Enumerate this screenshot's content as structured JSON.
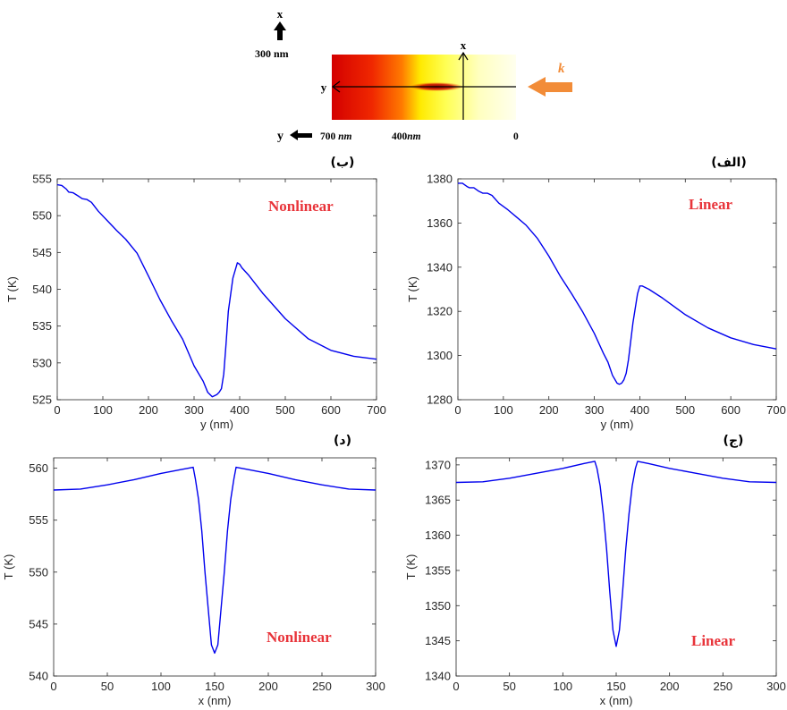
{
  "schematic": {
    "axis_x": "x",
    "axis_y": "y",
    "scale": "300 nm",
    "k": "k",
    "pos_700": "700",
    "pos_400": "400",
    "unit": "nm",
    "pos_0": "0",
    "colors": {
      "dark": "#d40000",
      "mid": "#ff5a00",
      "yellow": "#ffff00",
      "pale": "#ffffee",
      "arrow": "#f28c38"
    }
  },
  "chart_data": [
    {
      "type": "line",
      "panel_label": "(ب)",
      "annotation": "Nonlinear",
      "xlabel": "y (nm)",
      "ylabel": "T (K)",
      "xlim": [
        0,
        700
      ],
      "ylim": [
        525,
        555
      ],
      "xticks": [
        0,
        100,
        200,
        300,
        400,
        500,
        600,
        700
      ],
      "yticks": [
        525,
        530,
        535,
        540,
        545,
        550,
        555
      ],
      "series": [
        {
          "color": "#0000ee",
          "x": [
            0,
            10,
            20,
            25,
            35,
            45,
            55,
            65,
            75,
            90,
            110,
            130,
            150,
            175,
            200,
            225,
            250,
            275,
            300,
            320,
            330,
            340,
            350,
            355,
            360,
            365,
            370,
            375,
            385,
            395,
            400,
            405,
            420,
            450,
            500,
            550,
            600,
            650,
            700
          ],
          "y": [
            554.2,
            554.1,
            553.6,
            553.2,
            553.1,
            552.7,
            552.3,
            552.2,
            551.8,
            550.6,
            549.3,
            548.0,
            546.8,
            544.9,
            541.8,
            538.6,
            535.8,
            533.2,
            529.6,
            527.5,
            526.0,
            525.4,
            525.7,
            526.0,
            526.5,
            528.5,
            532.5,
            537.0,
            541.5,
            543.6,
            543.4,
            542.9,
            541.9,
            539.5,
            536.0,
            533.3,
            531.7,
            530.9,
            530.5
          ]
        }
      ]
    },
    {
      "type": "line",
      "panel_label": "(الف)",
      "annotation": "Linear",
      "xlabel": "y (nm)",
      "ylabel": "T (K)",
      "xlim": [
        0,
        700
      ],
      "ylim": [
        1280,
        1380
      ],
      "xticks": [
        0,
        100,
        200,
        300,
        400,
        500,
        600,
        700
      ],
      "yticks": [
        1280,
        1300,
        1320,
        1340,
        1360,
        1380
      ],
      "series": [
        {
          "color": "#0000ee",
          "x": [
            0,
            10,
            20,
            25,
            35,
            45,
            55,
            65,
            75,
            90,
            110,
            130,
            150,
            175,
            200,
            225,
            250,
            275,
            300,
            320,
            330,
            340,
            350,
            355,
            360,
            365,
            370,
            375,
            385,
            395,
            400,
            405,
            420,
            450,
            500,
            550,
            600,
            650,
            700
          ],
          "y": [
            1378,
            1378,
            1376.5,
            1376,
            1376,
            1374.5,
            1373.5,
            1373.5,
            1372.5,
            1369,
            1366,
            1362.5,
            1359,
            1353,
            1345,
            1336,
            1328,
            1319.5,
            1310,
            1301,
            1297,
            1291,
            1287.5,
            1287,
            1287.5,
            1289,
            1292,
            1298,
            1315,
            1328,
            1331.5,
            1331.5,
            1330,
            1326,
            1318.5,
            1312.5,
            1308,
            1305,
            1303
          ]
        }
      ]
    },
    {
      "type": "line",
      "panel_label": "(د)",
      "annotation": "Nonlinear",
      "xlabel": "x (nm)",
      "ylabel": "T (K)",
      "xlim": [
        0,
        300
      ],
      "ylim": [
        540,
        561
      ],
      "xticks": [
        0,
        50,
        100,
        150,
        200,
        250,
        300
      ],
      "yticks": [
        540,
        545,
        550,
        555,
        560
      ],
      "series": [
        {
          "color": "#0000ee",
          "x": [
            0,
            25,
            50,
            75,
            100,
            120,
            130,
            132,
            135,
            138,
            141,
            144,
            147,
            150,
            153,
            156,
            159,
            162,
            165,
            168,
            170,
            180,
            200,
            225,
            250,
            275,
            300
          ],
          "y": [
            557.9,
            558.0,
            558.4,
            558.9,
            559.5,
            559.9,
            560.1,
            559.0,
            557.0,
            554.0,
            550.0,
            546.5,
            543.0,
            542.2,
            543.0,
            546.5,
            550.0,
            554.0,
            557.0,
            559.0,
            560.1,
            559.9,
            559.5,
            558.9,
            558.4,
            558.0,
            557.9
          ]
        }
      ]
    },
    {
      "type": "line",
      "panel_label": "(ج)",
      "annotation": "Linear",
      "xlabel": "x (nm)",
      "ylabel": "T (K)",
      "xlim": [
        0,
        300
      ],
      "ylim": [
        1340,
        1371
      ],
      "xticks": [
        0,
        50,
        100,
        150,
        200,
        250,
        300
      ],
      "yticks": [
        1340,
        1345,
        1350,
        1355,
        1360,
        1365,
        1370
      ],
      "series": [
        {
          "color": "#0000ee",
          "x": [
            0,
            25,
            50,
            75,
            100,
            120,
            130,
            132,
            135,
            138,
            141,
            144,
            147,
            150,
            153,
            156,
            159,
            162,
            165,
            168,
            170,
            180,
            200,
            225,
            250,
            275,
            300
          ],
          "y": [
            1367.5,
            1367.6,
            1368.1,
            1368.8,
            1369.5,
            1370.2,
            1370.5,
            1369.5,
            1367.0,
            1363.0,
            1358.0,
            1352.0,
            1346.5,
            1344.2,
            1346.5,
            1352.0,
            1358.0,
            1363.0,
            1367.0,
            1369.5,
            1370.5,
            1370.2,
            1369.5,
            1368.8,
            1368.1,
            1367.6,
            1367.5
          ]
        }
      ]
    }
  ]
}
